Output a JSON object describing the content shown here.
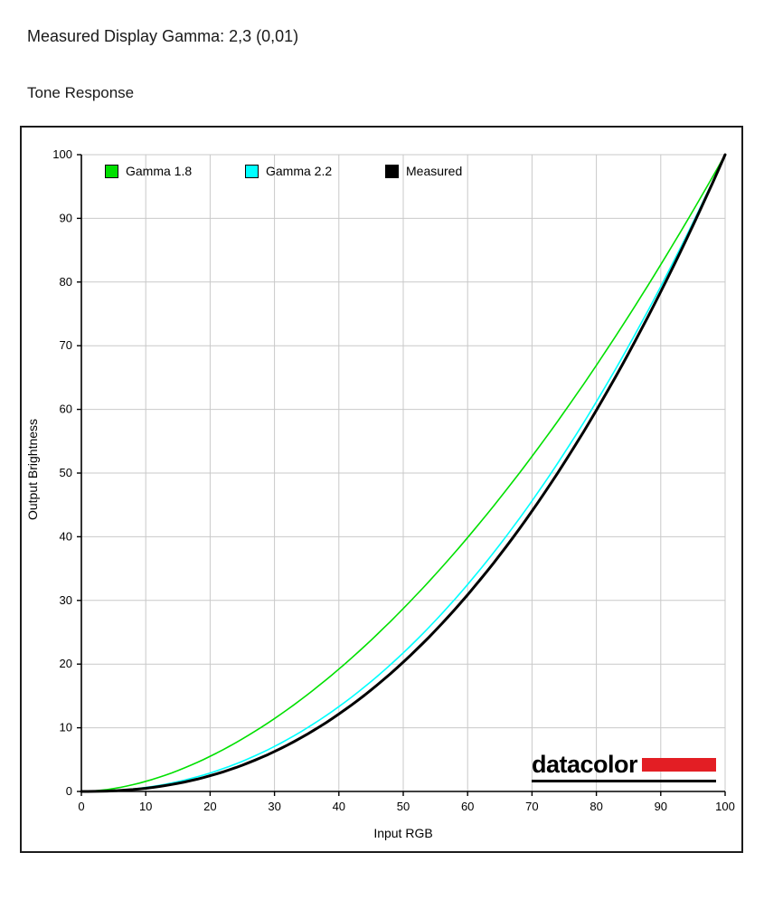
{
  "page": {
    "heading": "Measured Display Gamma: 2,3 (0,01)",
    "subheading": "Tone Response"
  },
  "chart_data": {
    "type": "line",
    "title": "Tone Response",
    "xlabel": "Input RGB",
    "ylabel": "Output Brightness",
    "xlim": [
      0,
      100
    ],
    "ylim": [
      0,
      100
    ],
    "x_ticks": [
      0,
      10,
      20,
      30,
      40,
      50,
      60,
      70,
      80,
      90,
      100
    ],
    "y_ticks": [
      0,
      10,
      20,
      30,
      40,
      50,
      60,
      70,
      80,
      90,
      100
    ],
    "grid": true,
    "grid_color": "#c9c9c9",
    "legend_position": "top-left",
    "x": [
      0,
      10,
      20,
      30,
      40,
      50,
      60,
      70,
      80,
      90,
      100
    ],
    "series": [
      {
        "name": "Gamma 1.8",
        "color": "#00e000",
        "gamma": 1.8,
        "line_width": 1.6,
        "values": [
          0,
          1.6,
          5.5,
          11.5,
          19.2,
          28.7,
          39.9,
          52.6,
          66.9,
          82.7,
          100
        ]
      },
      {
        "name": "Gamma 2.2",
        "color": "#00ffff",
        "gamma": 2.2,
        "line_width": 1.6,
        "values": [
          0,
          0.6,
          2.9,
          7.1,
          13.3,
          21.8,
          32.5,
          45.6,
          61.2,
          79.3,
          100
        ]
      },
      {
        "name": "Measured",
        "color": "#000000",
        "gamma": 2.3,
        "line_width": 3,
        "values": [
          0,
          0.5,
          2.5,
          6.3,
          12.2,
          20.3,
          30.9,
          44.0,
          59.9,
          78.5,
          100
        ]
      }
    ]
  },
  "logo": {
    "text": "datacolor",
    "bar_color": "#e31e24"
  }
}
